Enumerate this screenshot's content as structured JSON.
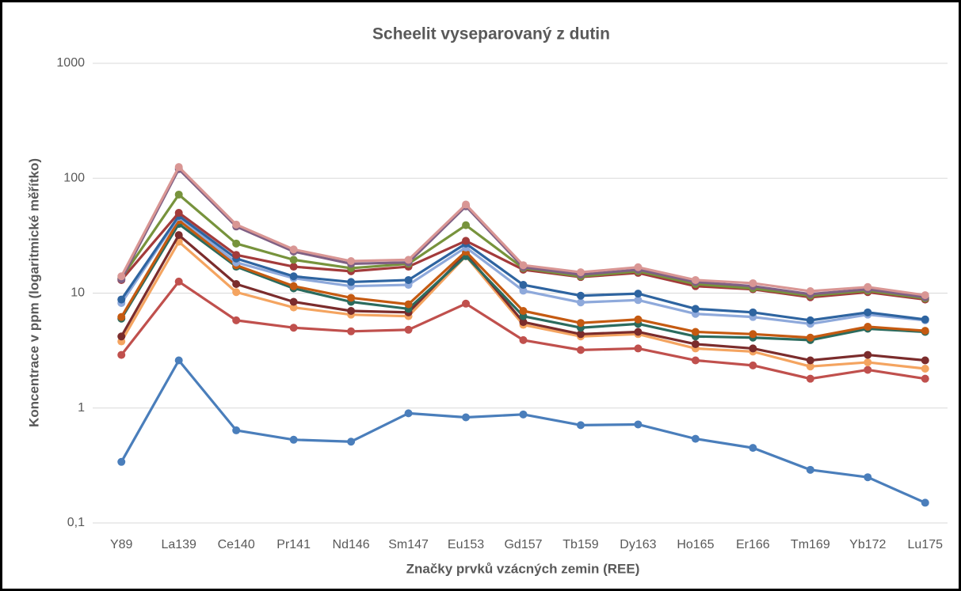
{
  "chart_data": {
    "type": "line",
    "title": "Scheelit vyseparovaný z dutin",
    "xlabel": "Značky prvků vzácných zemin (REE)",
    "ylabel": "Koncentrace v ppm (logaritmické měřítko)",
    "categories": [
      "Y89",
      "La139",
      "Ce140",
      "Pr141",
      "Nd146",
      "Sm147",
      "Eu153",
      "Gd157",
      "Tb159",
      "Dy163",
      "Ho165",
      "Er166",
      "Tm169",
      "Yb172",
      "Lu175"
    ],
    "ylim": [
      0.1,
      1000
    ],
    "yticks": [
      {
        "value": 0.1,
        "label": "0,1"
      },
      1,
      10,
      100,
      1000
    ],
    "log": true,
    "grid": true,
    "series": [
      {
        "color": "#4a7ebb",
        "values": [
          0.34,
          2.6,
          0.64,
          0.53,
          0.51,
          0.9,
          0.83,
          0.88,
          0.71,
          0.72,
          0.54,
          0.45,
          0.29,
          0.25,
          0.15
        ]
      },
      {
        "color": "#c0504d",
        "values": [
          2.9,
          12.6,
          5.8,
          5.0,
          4.65,
          4.8,
          8.1,
          3.9,
          3.2,
          3.3,
          2.6,
          2.35,
          1.8,
          2.15,
          1.8
        ]
      },
      {
        "color": "#f4a460",
        "values": [
          3.8,
          28,
          10.2,
          7.5,
          6.5,
          6.3,
          21,
          5.3,
          4.2,
          4.4,
          3.3,
          3.1,
          2.3,
          2.5,
          2.2
        ]
      },
      {
        "color": "#7b2c2c",
        "values": [
          4.2,
          32,
          12,
          8.4,
          7.0,
          6.8,
          22,
          5.6,
          4.4,
          4.6,
          3.6,
          3.3,
          2.6,
          2.9,
          2.6
        ]
      },
      {
        "color": "#2b6b5e",
        "values": [
          6.0,
          40,
          17,
          11,
          8.4,
          7.3,
          21,
          6.3,
          5.0,
          5.4,
          4.2,
          4.1,
          3.9,
          4.9,
          4.6
        ]
      },
      {
        "color": "#c55a11",
        "values": [
          6.2,
          43,
          17.5,
          11.5,
          9.1,
          8.0,
          23,
          7.0,
          5.5,
          5.9,
          4.6,
          4.4,
          4.1,
          5.1,
          4.7
        ]
      },
      {
        "color": "#8ea9db",
        "values": [
          8.2,
          46,
          18.5,
          13.5,
          11.5,
          11.8,
          25,
          10.5,
          8.3,
          8.7,
          6.6,
          6.2,
          5.4,
          6.5,
          5.8
        ]
      },
      {
        "color": "#2e64a0",
        "values": [
          8.8,
          47,
          20,
          14,
          12.5,
          13,
          27,
          11.8,
          9.5,
          9.9,
          7.3,
          6.8,
          5.8,
          6.8,
          5.9
        ]
      },
      {
        "color": "#a33b3b",
        "values": [
          13,
          50,
          21.5,
          17,
          15.5,
          17,
          28.5,
          16,
          13.8,
          15,
          11.5,
          10.8,
          9.2,
          10.2,
          8.8
        ]
      },
      {
        "color": "#77933c",
        "values": [
          13.5,
          72,
          27,
          19.5,
          16.5,
          18,
          39,
          16.5,
          14,
          15.5,
          12,
          11,
          9.5,
          10.5,
          9
        ]
      },
      {
        "color": "#7f6084",
        "values": [
          13.2,
          120,
          38,
          23,
          18,
          18.5,
          57,
          16.8,
          14.5,
          16,
          12.5,
          11.5,
          9.8,
          10.8,
          9.2
        ]
      },
      {
        "color": "#d99694",
        "values": [
          14,
          125,
          39.5,
          24,
          19,
          19.5,
          59,
          17.5,
          15.2,
          16.8,
          13,
          12.2,
          10.4,
          11.3,
          9.6
        ]
      }
    ]
  }
}
